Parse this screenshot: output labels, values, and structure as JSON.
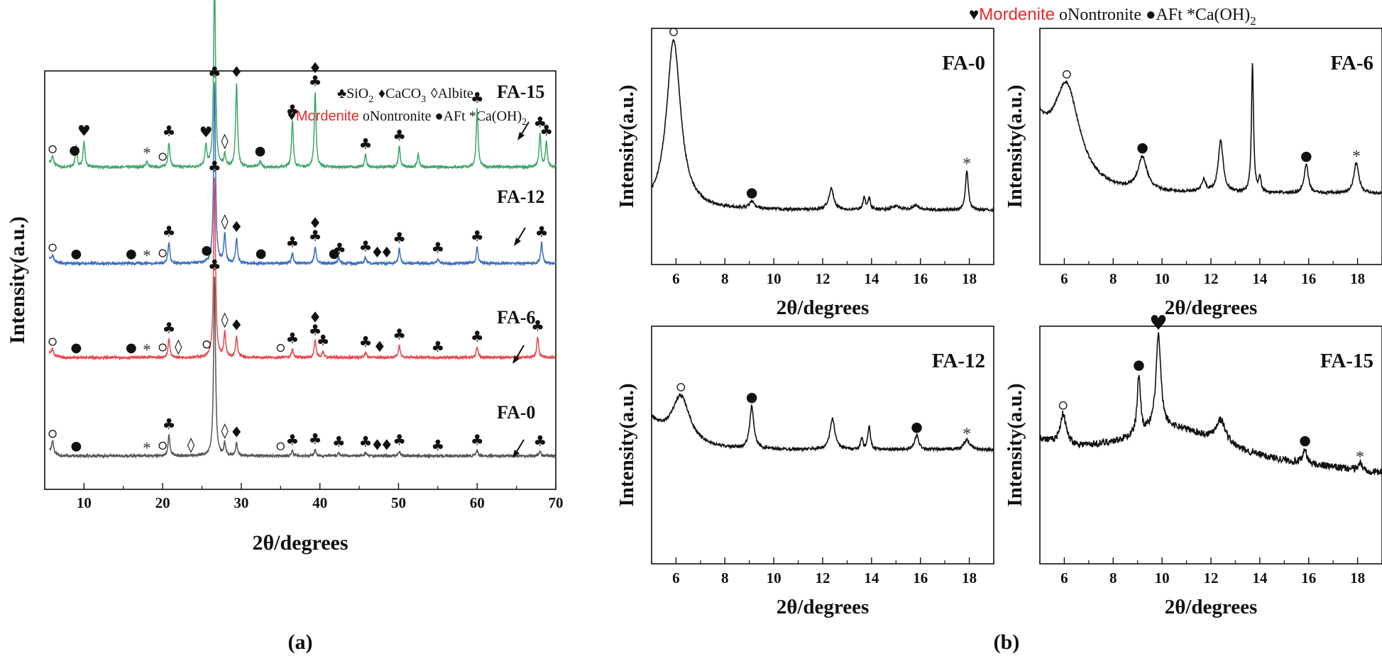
{
  "chart_data": [
    {
      "id": "a",
      "type": "line",
      "panel_label": "(a)",
      "xlabel": "2θ/degrees",
      "ylabel": "Intensity(a.u.)",
      "xlim": [
        5,
        70
      ],
      "x_ticks": [
        10,
        20,
        30,
        40,
        50,
        60,
        70
      ],
      "legend_line1": {
        "items": [
          {
            "sym": "♣",
            "text": "SiO",
            "sub": "2"
          },
          {
            "sym": "♦",
            "text": "CaCO",
            "sub": "3"
          },
          {
            "sym": "◊",
            "text": "Albite",
            "sub": ""
          }
        ]
      },
      "legend_line2": {
        "items": [
          {
            "sym": "♥",
            "text": "Mordenite",
            "sub": "",
            "color": "#e8282b"
          },
          {
            "sym": "",
            "text": "oNontronite",
            "sub": ""
          },
          {
            "sym": "●",
            "text": "AFt",
            "sub": ""
          },
          {
            "sym": "*",
            "text": "Ca(OH)",
            "sub": "2"
          }
        ]
      },
      "series": [
        {
          "name": "FA-15",
          "color": "#3ca864",
          "baseline": 0.77,
          "peaks": [
            [
              6,
              0.02
            ],
            [
              9,
              0.05
            ],
            [
              10,
              0.06
            ],
            [
              18,
              0.015
            ],
            [
              20.8,
              0.06
            ],
            [
              25.5,
              0.05
            ],
            [
              26.6,
              0.46
            ],
            [
              27.9,
              0.03
            ],
            [
              29.4,
              0.2
            ],
            [
              32.4,
              0.015
            ],
            [
              36.5,
              0.11
            ],
            [
              39.4,
              0.18
            ],
            [
              45.8,
              0.03
            ],
            [
              50.1,
              0.05
            ],
            [
              52.5,
              0.03
            ],
            [
              60,
              0.14
            ],
            [
              68,
              0.08
            ],
            [
              68.8,
              0.06
            ]
          ],
          "markers": [
            [
              6,
              "o"
            ],
            [
              8.8,
              "●"
            ],
            [
              10,
              "♥"
            ],
            [
              18,
              "*"
            ],
            [
              20,
              "o"
            ],
            [
              20.8,
              "♣"
            ],
            [
              25.5,
              "♥"
            ],
            [
              26.6,
              "♣"
            ],
            [
              27.9,
              "◊"
            ],
            [
              29.4,
              "♦"
            ],
            [
              32.4,
              "●"
            ],
            [
              36.5,
              "♣"
            ],
            [
              39.4,
              "♦♣"
            ],
            [
              45.8,
              "♣"
            ],
            [
              50.1,
              "♣"
            ],
            [
              60,
              "♣"
            ],
            [
              68,
              "♣"
            ],
            [
              68.8,
              "♣"
            ]
          ]
        },
        {
          "name": "FA-12",
          "color": "#3a6fc0",
          "baseline": 0.54,
          "peaks": [
            [
              6,
              0.015
            ],
            [
              20.8,
              0.05
            ],
            [
              26.6,
              0.43
            ],
            [
              27.9,
              0.07
            ],
            [
              29.4,
              0.06
            ],
            [
              36.5,
              0.025
            ],
            [
              39.4,
              0.04
            ],
            [
              42.4,
              0.015
            ],
            [
              45.8,
              0.015
            ],
            [
              50.1,
              0.035
            ],
            [
              55,
              0.012
            ],
            [
              60,
              0.04
            ],
            [
              68.2,
              0.05
            ]
          ],
          "markers": [
            [
              6,
              "o"
            ],
            [
              9,
              "●"
            ],
            [
              16,
              "●"
            ],
            [
              18,
              "*"
            ],
            [
              20,
              "o"
            ],
            [
              20.8,
              "♣"
            ],
            [
              25.6,
              "●"
            ],
            [
              26.6,
              "♣"
            ],
            [
              27.9,
              "◊"
            ],
            [
              29.4,
              "♦"
            ],
            [
              32.5,
              "●"
            ],
            [
              36.5,
              "♣"
            ],
            [
              39.4,
              "♦♣"
            ],
            [
              41.8,
              "●"
            ],
            [
              42.5,
              "♣"
            ],
            [
              45.8,
              "♣"
            ],
            [
              47.3,
              "♦"
            ],
            [
              48.5,
              "♦"
            ],
            [
              50.1,
              "♣"
            ],
            [
              55,
              "♣"
            ],
            [
              60,
              "♣"
            ],
            [
              68.2,
              "♣"
            ]
          ]
        },
        {
          "name": "FA-6",
          "color": "#e8474c",
          "baseline": 0.315,
          "peaks": [
            [
              6,
              0.015
            ],
            [
              20.8,
              0.045
            ],
            [
              26.6,
              0.43
            ],
            [
              27.9,
              0.06
            ],
            [
              29.4,
              0.05
            ],
            [
              36.5,
              0.02
            ],
            [
              39.4,
              0.04
            ],
            [
              40.4,
              0.015
            ],
            [
              45.8,
              0.012
            ],
            [
              50.1,
              0.03
            ],
            [
              60,
              0.025
            ],
            [
              67.7,
              0.05
            ]
          ],
          "markers": [
            [
              6,
              "o"
            ],
            [
              9,
              "●"
            ],
            [
              16,
              "●"
            ],
            [
              18,
              "*"
            ],
            [
              20,
              "o"
            ],
            [
              20.8,
              "♣"
            ],
            [
              22,
              "◊"
            ],
            [
              25.6,
              "o"
            ],
            [
              26.6,
              "♣"
            ],
            [
              27.9,
              "◊"
            ],
            [
              29.4,
              "♦"
            ],
            [
              35,
              "o"
            ],
            [
              36.5,
              "♣"
            ],
            [
              39.4,
              "♦♣"
            ],
            [
              40.4,
              "♣"
            ],
            [
              45.8,
              "♣"
            ],
            [
              47.6,
              "♦"
            ],
            [
              50.1,
              "♣"
            ],
            [
              55,
              "♣"
            ],
            [
              60,
              "♣"
            ],
            [
              67.7,
              "♣"
            ]
          ]
        },
        {
          "name": "FA-0",
          "color": "#555555",
          "baseline": 0.08,
          "peaks": [
            [
              6,
              0.03
            ],
            [
              20.8,
              0.05
            ],
            [
              26.6,
              0.43
            ],
            [
              27.9,
              0.03
            ],
            [
              29.4,
              0.03
            ],
            [
              36.5,
              0.012
            ],
            [
              39.4,
              0.015
            ],
            [
              42.4,
              0.008
            ],
            [
              45.8,
              0.008
            ],
            [
              50.1,
              0.012
            ],
            [
              60,
              0.012
            ],
            [
              68,
              0.01
            ]
          ],
          "markers": [
            [
              6,
              "o"
            ],
            [
              9,
              "●"
            ],
            [
              18,
              "*"
            ],
            [
              20,
              "o"
            ],
            [
              20.8,
              "♣"
            ],
            [
              23.6,
              "◊"
            ],
            [
              26.6,
              "♣"
            ],
            [
              27.9,
              "◊"
            ],
            [
              29.4,
              "♦"
            ],
            [
              35,
              "o"
            ],
            [
              36.5,
              "♣"
            ],
            [
              39.4,
              "♣"
            ],
            [
              42.4,
              "♣"
            ],
            [
              45.8,
              "♣"
            ],
            [
              47.3,
              "♦"
            ],
            [
              48.5,
              "♦"
            ],
            [
              50.1,
              "♣"
            ],
            [
              55,
              "♣"
            ],
            [
              60,
              "♣"
            ],
            [
              68,
              "♣"
            ]
          ]
        }
      ]
    },
    {
      "id": "b",
      "type": "line",
      "panel_label": "(b)",
      "legend": {
        "items": [
          {
            "sym": "♥",
            "text": "Mordenite",
            "sub": "",
            "color": "#e8282b"
          },
          {
            "sym": "",
            "text": "oNontronite",
            "sub": ""
          },
          {
            "sym": "●",
            "text": "AFt",
            "sub": ""
          },
          {
            "sym": "*",
            "text": "Ca(OH)",
            "sub": "2"
          }
        ]
      },
      "subplots": [
        {
          "name": "FA-0",
          "xlabel": "2θ/degrees",
          "ylabel": "Intensity(a.u.)",
          "xlim": [
            5,
            19
          ],
          "x_ticks": [
            6,
            8,
            10,
            12,
            14,
            16,
            18
          ],
          "baseline": 0.23,
          "start": 0.6,
          "peaks": [
            [
              5.9,
              0.72,
              0.35
            ],
            [
              9.1,
              0.03,
              0.12
            ],
            [
              12.35,
              0.09,
              0.12
            ],
            [
              13.7,
              0.05,
              0.06
            ],
            [
              13.9,
              0.05,
              0.06
            ],
            [
              15,
              0.015,
              0.2
            ],
            [
              15.8,
              0.02,
              0.15
            ],
            [
              17.9,
              0.17,
              0.07
            ]
          ],
          "markers": [
            [
              5.9,
              "o"
            ],
            [
              9.1,
              "●"
            ],
            [
              17.9,
              "*"
            ]
          ]
        },
        {
          "name": "FA-6",
          "xlabel": "2θ/degrees",
          "ylabel": "Intensity(a.u.)",
          "xlim": [
            5,
            19
          ],
          "x_ticks": [
            6,
            8,
            10,
            12,
            14,
            16,
            18
          ],
          "baseline": 0.3,
          "start": 0.56,
          "peaks": [
            [
              6.1,
              0.4,
              0.65
            ],
            [
              9.2,
              0.14,
              0.22
            ],
            [
              11.7,
              0.05,
              0.1
            ],
            [
              12.4,
              0.22,
              0.12
            ],
            [
              13.7,
              0.55,
              0.05
            ],
            [
              14,
              0.06,
              0.06
            ],
            [
              15.9,
              0.12,
              0.1
            ],
            [
              17.95,
              0.13,
              0.12
            ]
          ],
          "markers": [
            [
              6.1,
              "o"
            ],
            [
              9.2,
              "●"
            ],
            [
              15.9,
              "●"
            ],
            [
              17.95,
              "*"
            ]
          ]
        },
        {
          "name": "FA-12",
          "xlabel": "2θ/degrees",
          "ylabel": "Intensity(a.u.)",
          "xlim": [
            5,
            19
          ],
          "x_ticks": [
            6,
            8,
            10,
            12,
            14,
            16,
            18
          ],
          "baseline": 0.48,
          "start": 0.6,
          "peaks": [
            [
              6.2,
              0.2,
              0.45
            ],
            [
              9.1,
              0.18,
              0.1
            ],
            [
              12.4,
              0.13,
              0.12
            ],
            [
              13.9,
              0.1,
              0.06
            ],
            [
              13.6,
              0.05,
              0.05
            ],
            [
              15.85,
              0.06,
              0.1
            ],
            [
              17.9,
              0.04,
              0.15
            ]
          ],
          "markers": [
            [
              6.2,
              "o"
            ],
            [
              9.1,
              "●"
            ],
            [
              15.85,
              "●"
            ],
            [
              17.9,
              "*"
            ]
          ]
        },
        {
          "name": "FA-15",
          "xlabel": "2θ/degrees",
          "ylabel": "Intensity(a.u.)",
          "xlim": [
            5,
            19
          ],
          "x_ticks": [
            6,
            8,
            10,
            12,
            14,
            16,
            18
          ],
          "baseline": 0.45,
          "start": 0.5,
          "peaks": [
            [
              5.95,
              0.13,
              0.15
            ],
            [
              9.05,
              0.25,
              0.08
            ],
            [
              9.85,
              0.4,
              0.12
            ],
            [
              12.4,
              0.1,
              0.25
            ],
            [
              10.5,
              0.12,
              2.4
            ],
            [
              15.85,
              0.06,
              0.08
            ],
            [
              18.1,
              0.03,
              0.1
            ]
          ],
          "markers": [
            [
              5.95,
              "o"
            ],
            [
              9.05,
              "●"
            ],
            [
              9.85,
              "♥"
            ],
            [
              15.85,
              "●"
            ],
            [
              18.1,
              "*"
            ]
          ]
        }
      ]
    }
  ]
}
